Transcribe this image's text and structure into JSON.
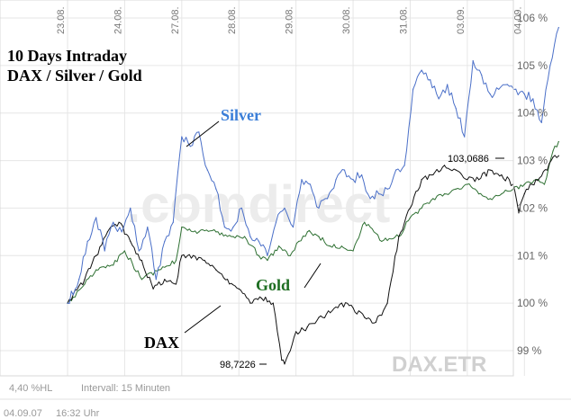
{
  "chart_data": {
    "type": "line",
    "title": "10 Days Intraday",
    "subtitle": "DAX / Silver / Gold",
    "x": [
      "23.08.",
      "24.08.",
      "27.08.",
      "28.08.",
      "29.08.",
      "30.08.",
      "31.08.",
      "03.09.",
      "04.09."
    ],
    "y_ticks": [
      "99 %",
      "100 %",
      "101 %",
      "102 %",
      "103 %",
      "104 %",
      "105 %",
      "106 %"
    ],
    "ylim": [
      98.3,
      106.2
    ],
    "grid": true,
    "series": [
      {
        "name": "Silver",
        "color": "#4a6fc8",
        "x": [
          0.0,
          0.2,
          0.35,
          0.5,
          0.65,
          0.8,
          0.95,
          1.1,
          1.25,
          1.4,
          1.55,
          1.7,
          1.85,
          2.0,
          2.15,
          2.3,
          2.45,
          2.6,
          2.75,
          2.9,
          3.05,
          3.2,
          3.35,
          3.5,
          3.65,
          3.8,
          3.95,
          4.1,
          4.25,
          4.4,
          4.55,
          4.7,
          4.85,
          5.0,
          5.15,
          5.3,
          5.45,
          5.6,
          5.75,
          5.9,
          6.05,
          6.2,
          6.35,
          6.5,
          6.65,
          6.8,
          6.95,
          7.1,
          7.25,
          7.4,
          7.55,
          7.7,
          7.85,
          8.0,
          8.15,
          8.3,
          8.45,
          8.6
        ],
        "values": [
          100.0,
          100.5,
          101.3,
          101.8,
          101.1,
          101.7,
          101.5,
          102.0,
          101.1,
          101.6,
          100.5,
          101.3,
          101.7,
          103.5,
          103.3,
          103.6,
          102.8,
          102.4,
          101.6,
          101.6,
          102.0,
          101.4,
          101.3,
          101.0,
          101.7,
          102.0,
          101.6,
          102.6,
          102.5,
          102.0,
          102.2,
          102.6,
          102.8,
          102.6,
          102.7,
          102.2,
          102.3,
          102.4,
          102.8,
          102.9,
          104.5,
          104.9,
          104.7,
          104.3,
          104.6,
          104.1,
          103.5,
          105.1,
          104.8,
          104.4,
          104.5,
          104.6,
          104.5,
          104.4,
          104.3,
          103.8,
          105.0,
          105.8
        ]
      },
      {
        "name": "Gold",
        "color": "#2e7032",
        "x": [
          0.0,
          0.3,
          0.5,
          0.8,
          1.0,
          1.3,
          1.6,
          1.9,
          2.0,
          2.3,
          2.6,
          2.9,
          3.1,
          3.35,
          3.5,
          3.7,
          3.9,
          4.05,
          4.2,
          4.4,
          4.6,
          4.8,
          5.0,
          5.2,
          5.5,
          5.8,
          6.0,
          6.2,
          6.4,
          6.6,
          6.8,
          7.0,
          7.2,
          7.4,
          7.6,
          7.8,
          8.0,
          8.2,
          8.35,
          8.5,
          8.6
        ],
        "values": [
          100.0,
          100.4,
          100.7,
          100.8,
          101.1,
          100.5,
          100.7,
          100.9,
          101.6,
          101.5,
          101.5,
          101.4,
          101.4,
          101.0,
          100.9,
          101.2,
          101.0,
          101.3,
          101.5,
          101.4,
          101.2,
          101.2,
          101.1,
          101.7,
          101.3,
          101.4,
          101.8,
          102.0,
          102.2,
          102.3,
          102.4,
          102.5,
          102.3,
          102.2,
          102.3,
          102.4,
          102.5,
          102.6,
          102.5,
          103.2,
          103.4
        ]
      },
      {
        "name": "DAX",
        "color": "#111111",
        "x": [
          0.0,
          0.3,
          0.5,
          0.7,
          0.9,
          1.1,
          1.3,
          1.5,
          1.7,
          1.9,
          2.0,
          2.2,
          2.4,
          2.6,
          2.8,
          3.0,
          3.2,
          3.4,
          3.6,
          3.75,
          3.8,
          4.0,
          4.2,
          4.4,
          4.6,
          4.8,
          5.0,
          5.2,
          5.4,
          5.6,
          5.8,
          6.0,
          6.2,
          6.4,
          6.6,
          6.8,
          7.0,
          7.2,
          7.4,
          7.6,
          7.8,
          7.9,
          8.0,
          8.2,
          8.4,
          8.5,
          8.6
        ],
        "values": [
          100.0,
          100.5,
          101.0,
          101.5,
          101.7,
          101.3,
          100.9,
          100.3,
          100.5,
          100.4,
          101.0,
          101.0,
          100.9,
          100.7,
          100.5,
          100.3,
          100.0,
          100.1,
          100.0,
          98.8,
          98.72,
          99.4,
          99.5,
          99.7,
          99.8,
          100.0,
          99.9,
          99.7,
          99.6,
          100.0,
          101.4,
          102.0,
          102.6,
          102.7,
          102.9,
          102.8,
          102.6,
          102.6,
          102.8,
          102.7,
          102.5,
          101.9,
          102.3,
          102.6,
          102.8,
          103.07,
          103.1
        ]
      }
    ],
    "annotations": [
      {
        "text": "Silver",
        "series": "Silver"
      },
      {
        "text": "Gold",
        "series": "Gold"
      },
      {
        "text": "DAX",
        "series": "DAX"
      },
      {
        "text": "103,0686",
        "x": 8.45,
        "y": 103.0686
      },
      {
        "text": "98,7226",
        "x": 3.78,
        "y": 98.7226
      }
    ],
    "watermark": ".comdirect",
    "source_label": "DAX.ETR"
  },
  "footer": {
    "left_info": "4,40 %HL",
    "interval": "Intervall: 15 Minuten",
    "date": "04.09.07",
    "time": "16:32 Uhr"
  }
}
